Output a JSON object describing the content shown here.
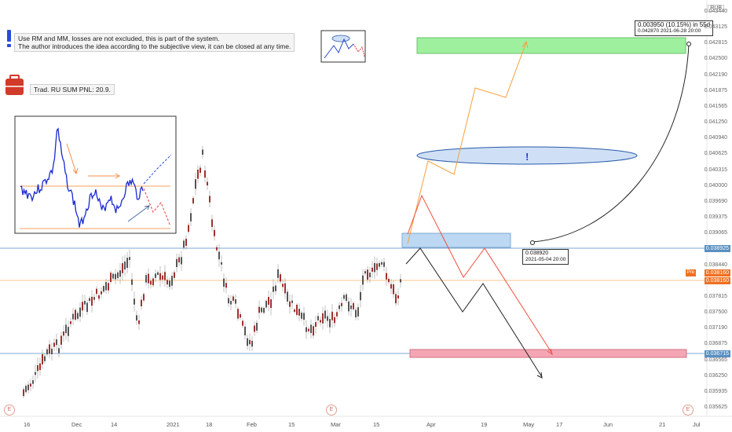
{
  "currency": "RUB",
  "notes": {
    "line1": "Use RM and MM, losses are not excluded, this is part of the system.",
    "line2": "The author introduces the idea according to the subjective view, it can be closed at any time.",
    "pnl": "Trad. RU SUM PNL: 20.9."
  },
  "price_axis": [
    "0.043440",
    "0.043125",
    "0.042815",
    "0.042500",
    "0.042190",
    "0.041875",
    "0.041565",
    "0.041250",
    "0.040940",
    "0.040625",
    "0.040315",
    "0.040000",
    "0.039690",
    "0.039375",
    "0.039065",
    "0.038750",
    "0.038440",
    "0.038125",
    "0.037815",
    "0.037500",
    "0.037190",
    "0.036875",
    "0.036565",
    "0.036250",
    "0.035935",
    "0.035625"
  ],
  "price_tags": {
    "level_upper": "0.038925",
    "current_label": "Pre",
    "current_price": "0.038160",
    "current_price2": "0.038160",
    "level_lower": "0.036715"
  },
  "date_axis": [
    "16",
    "Dec",
    "14",
    "2021",
    "18",
    "Feb",
    "15",
    "Mar",
    "15",
    "Apr",
    "19",
    "May",
    "17",
    "Jun",
    "21",
    "Jul"
  ],
  "callouts": {
    "target_line1": "0.003950 (10.15%) in 55d",
    "target_line2": "0.042870    2021-06-28  20:00",
    "entry_line1": "0.038920",
    "entry_line2": "2021-05-04 20:00"
  },
  "ellipse_mark": "!",
  "event_marker": "E",
  "colors": {
    "green_zone": "#9ef09e",
    "red_zone": "#f4a6b4",
    "blue_zone": "#bcd8f2",
    "ellipse": "#cfe0f6",
    "orange_path": "#f4a03a",
    "red_path": "#f05040",
    "black_path": "#222222",
    "bull_candle": "#555555",
    "bear_candle": "#a03030",
    "current_tag": "#f07020",
    "level_tag": "#5a8fc0"
  }
}
